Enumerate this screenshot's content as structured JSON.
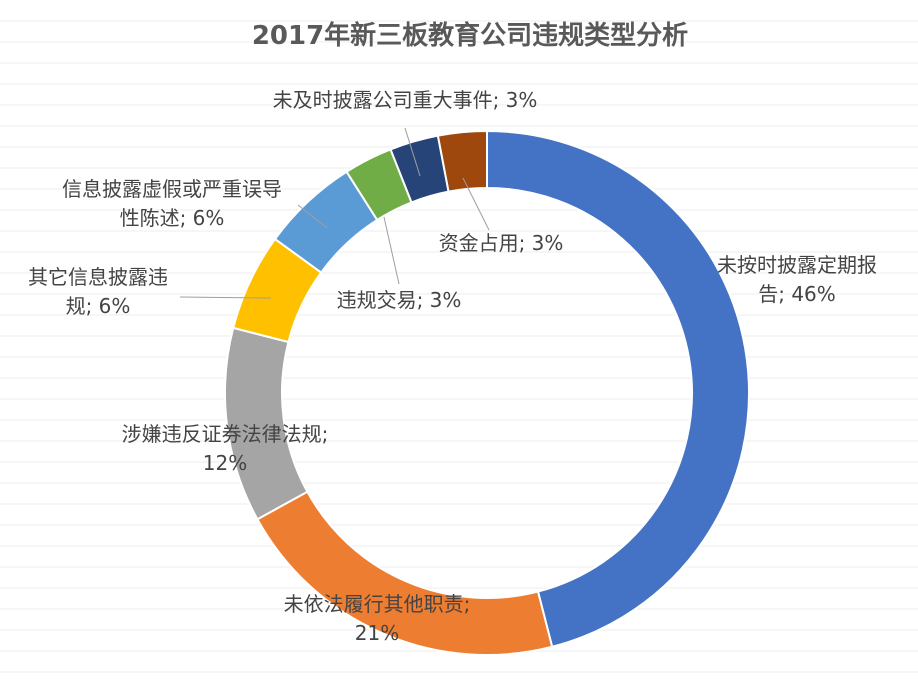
{
  "chart_data": {
    "type": "pie",
    "variant": "doughnut",
    "title": "2017年新三板教育公司违规类型分析",
    "start": "12 o'clock",
    "direction": "clockwise",
    "legend": "none",
    "slices": [
      {
        "name": "未按时披露定期报告",
        "label_lines": [
          "未按时披露定期报",
          "告; 46%"
        ],
        "value": 46,
        "color": "#4472C4"
      },
      {
        "name": "未依法履行其他职责",
        "label_lines": [
          "未依法履行其他职责;",
          "21%"
        ],
        "value": 21,
        "color": "#ED7D31"
      },
      {
        "name": "涉嫌违反证券法律法规",
        "label_lines": [
          "涉嫌违反证券法律法规;",
          "12%"
        ],
        "value": 12,
        "color": "#A5A5A5"
      },
      {
        "name": "其它信息披露违规",
        "label_lines": [
          "其它信息披露违",
          "规; 6%"
        ],
        "value": 6,
        "color": "#FFC000"
      },
      {
        "name": "信息披露虚假或严重误导性陈述",
        "label_lines": [
          "信息披露虚假或严重误导",
          "性陈述; 6%"
        ],
        "value": 6,
        "color": "#5B9BD5"
      },
      {
        "name": "违规交易",
        "label_lines": [
          "违规交易; 3%"
        ],
        "value": 3,
        "color": "#70AD47"
      },
      {
        "name": "未及时披露公司重大事件",
        "label_lines": [
          "未及时披露公司重大事件; 3%"
        ],
        "value": 3,
        "color": "#264478"
      },
      {
        "name": "资金占用",
        "label_lines": [
          "资金占用; 3%"
        ],
        "value": 3,
        "color": "#9E480E"
      }
    ]
  }
}
